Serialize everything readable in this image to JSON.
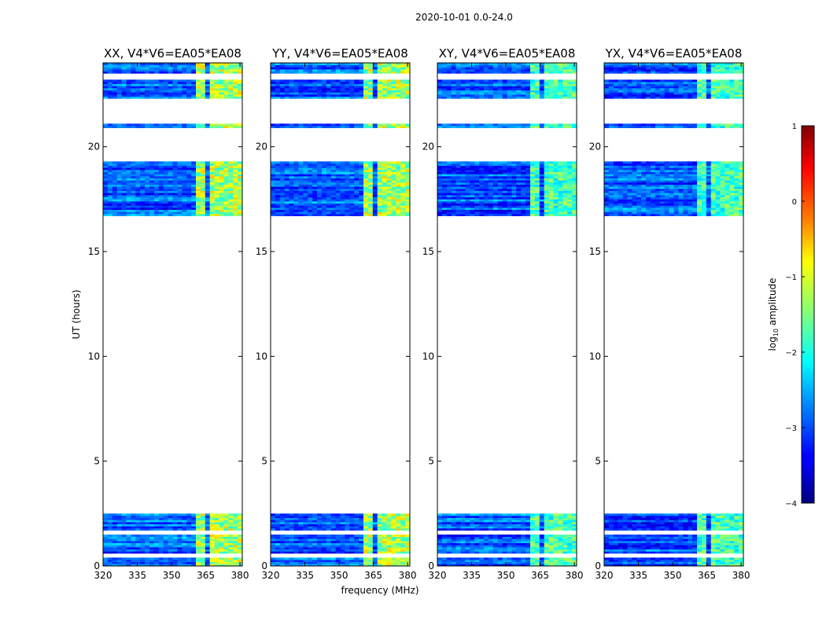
{
  "chart_data": {
    "type": "heatmap",
    "suptitle": "2020-10-01 0.0-24.0",
    "xlabel": "frequency (MHz)",
    "ylabel": "UT (hours)",
    "xlim": [
      320,
      381
    ],
    "ylim": [
      0,
      24
    ],
    "xticks": [
      320,
      335,
      350,
      365,
      380
    ],
    "yticks": [
      0,
      5,
      10,
      15,
      20
    ],
    "panels": [
      {
        "title": "XX, V4*V6=EA05*EA08",
        "rfi_level": "high"
      },
      {
        "title": "YY, V4*V6=EA05*EA08",
        "rfi_level": "high"
      },
      {
        "title": "XY, V4*V6=EA05*EA08",
        "rfi_level": "medium"
      },
      {
        "title": "YX, V4*V6=EA05*EA08",
        "rfi_level": "medium"
      }
    ],
    "data_bands_hours": [
      [
        0,
        2.5
      ],
      [
        16.7,
        19.3
      ],
      [
        20.9,
        21.1
      ],
      [
        22.3,
        24.0
      ]
    ],
    "gaps_hours": [
      [
        0.4,
        0.6
      ],
      [
        1.5,
        1.7
      ],
      [
        19.4,
        19.7
      ],
      [
        21.2,
        22.0
      ],
      [
        23.2,
        23.5
      ]
    ],
    "rfi_freq_ranges_mhz": [
      [
        361,
        365
      ],
      [
        366.5,
        370
      ],
      [
        371,
        373
      ],
      [
        373.5,
        376
      ],
      [
        377,
        381
      ]
    ],
    "colorbar": {
      "label": "log10 amplitude",
      "label_main": "log",
      "label_sub": "10",
      "label_rest": " amplitude",
      "ticks": [
        "1",
        "0",
        "−1",
        "−2",
        "−3",
        "−4"
      ],
      "range": [
        -4,
        1
      ],
      "colormap": "jet"
    }
  }
}
